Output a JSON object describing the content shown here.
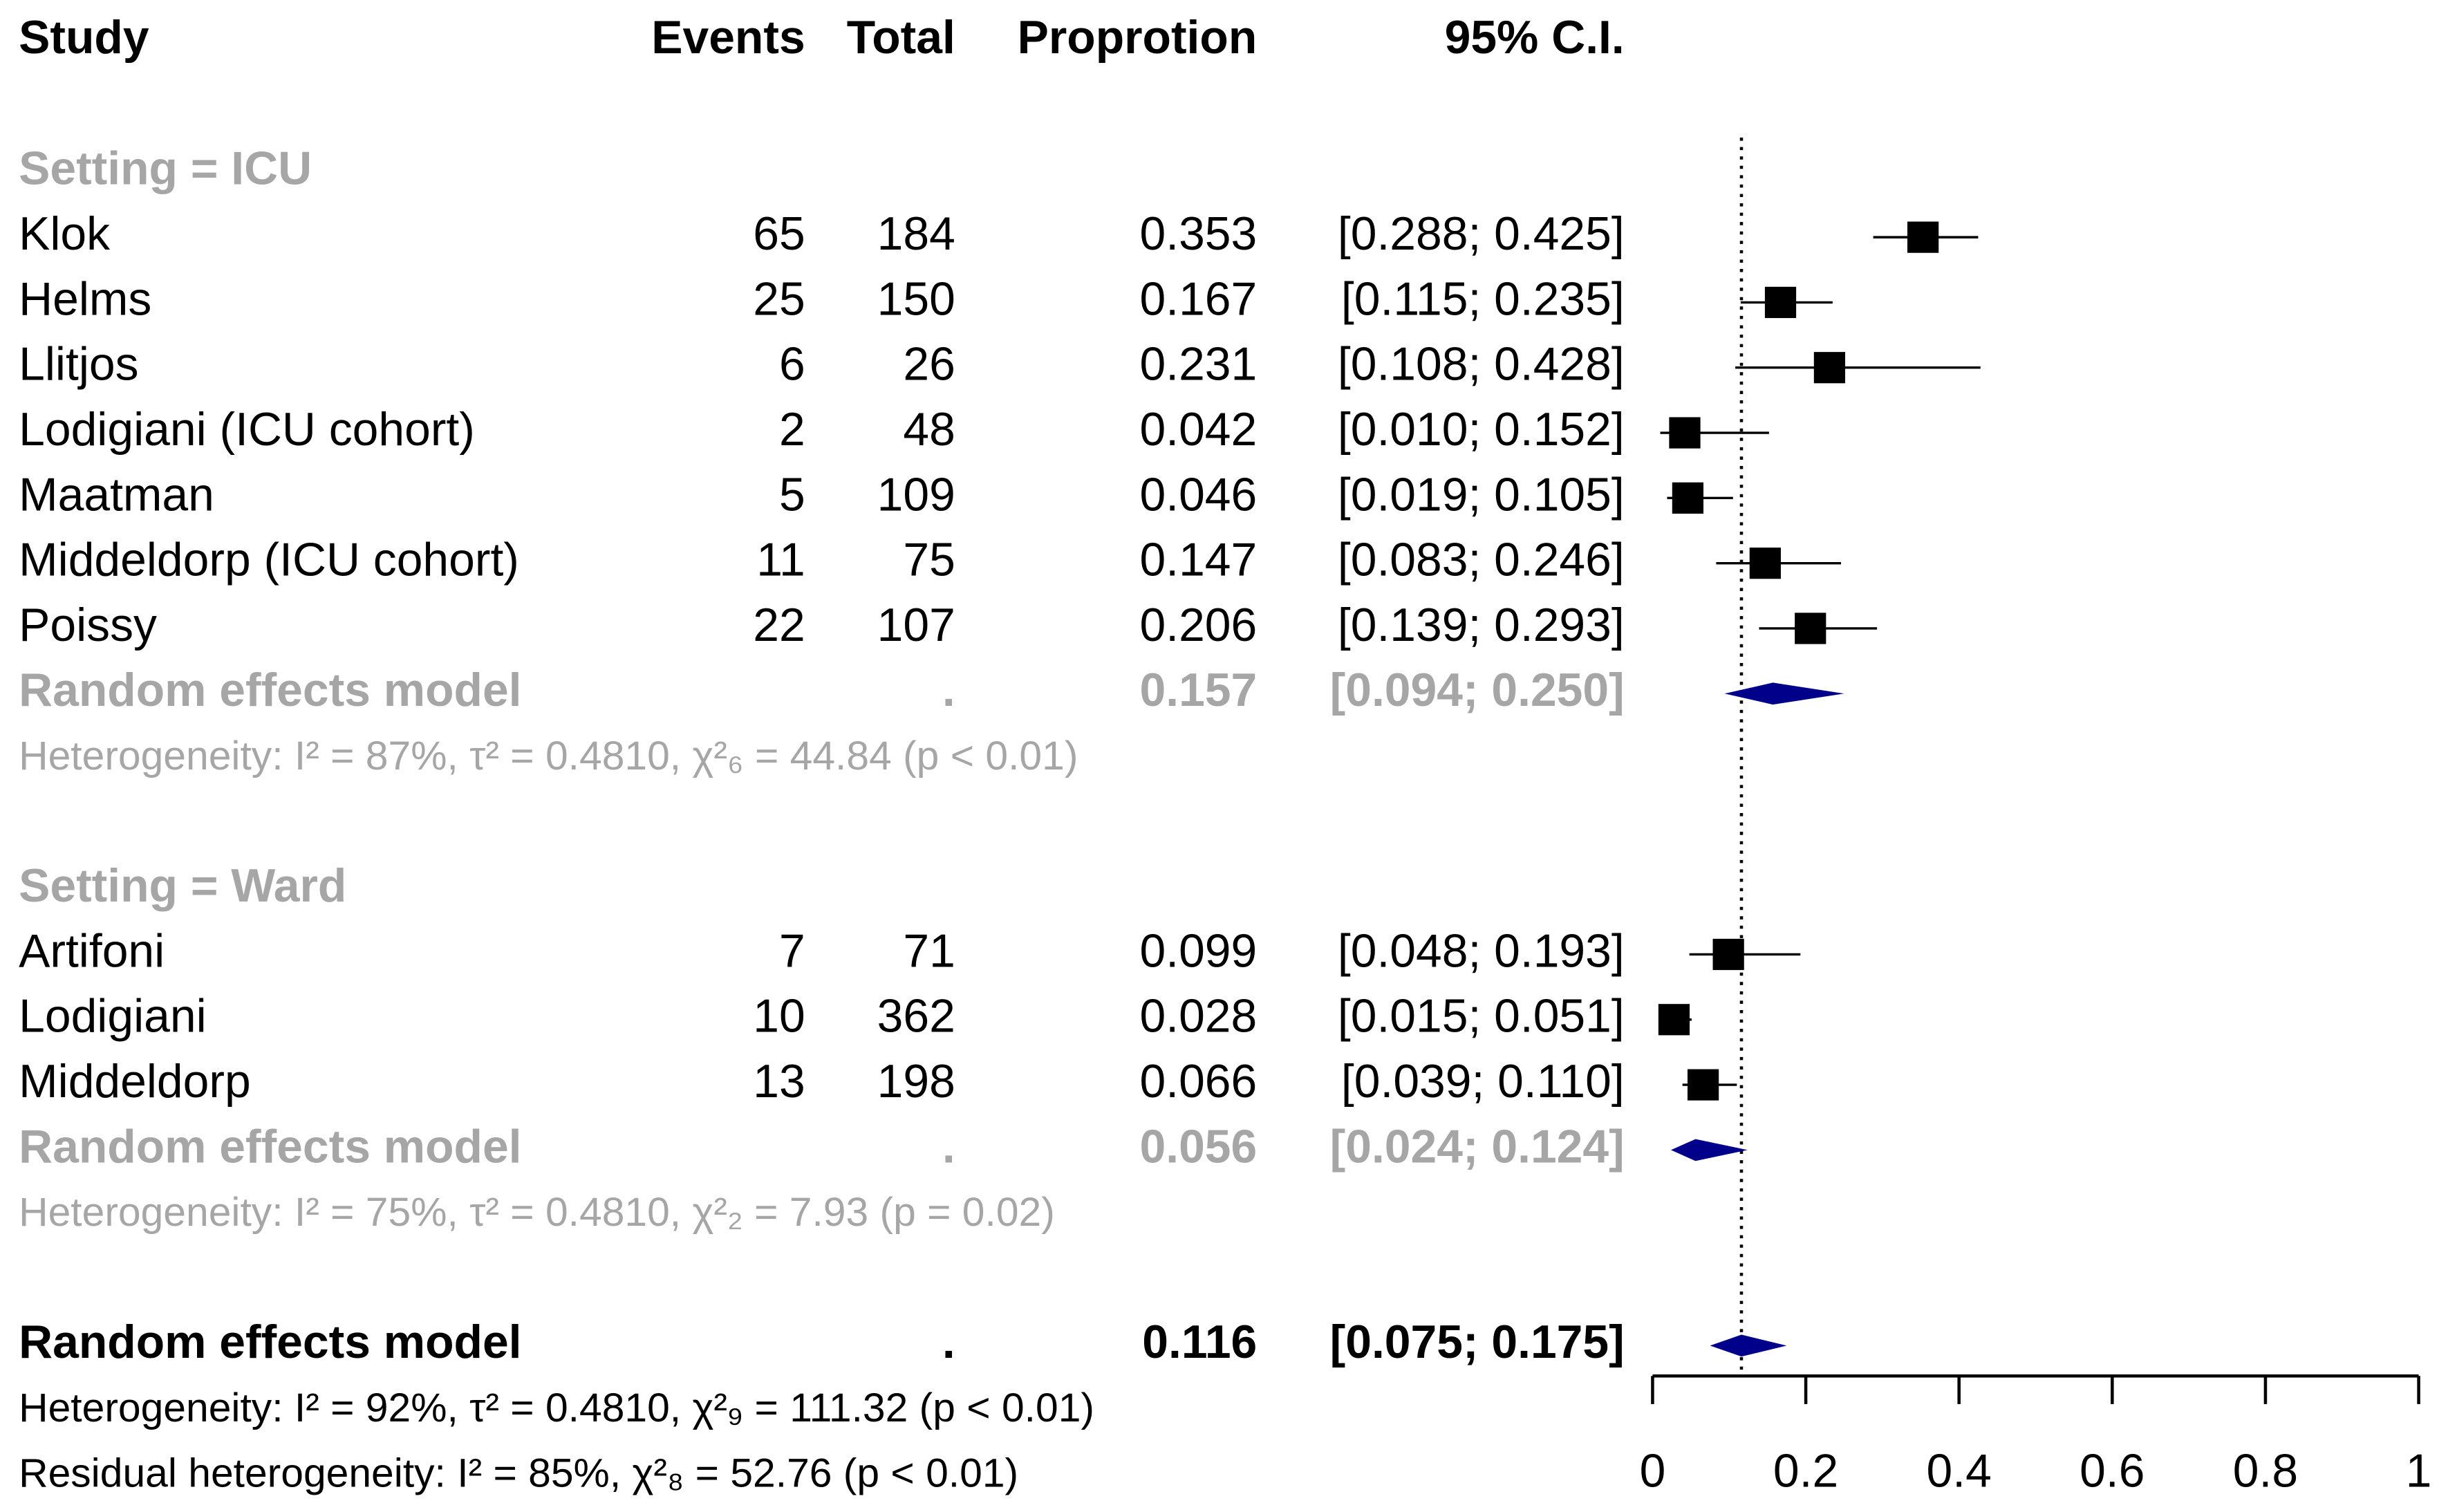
{
  "chart_data": {
    "type": "forest",
    "columns": [
      "Study",
      "Events",
      "Total",
      "Proprotion",
      "95% C.I."
    ],
    "groups": [
      {
        "label": "Setting = ICU",
        "studies": [
          {
            "study": "Klok",
            "events": 65,
            "total": 184,
            "proportion": 0.353,
            "lower": 0.288,
            "upper": 0.425,
            "ci_label": "[0.288; 0.425]"
          },
          {
            "study": "Helms",
            "events": 25,
            "total": 150,
            "proportion": 0.167,
            "lower": 0.115,
            "upper": 0.235,
            "ci_label": "[0.115; 0.235]"
          },
          {
            "study": "Llitjos",
            "events": 6,
            "total": 26,
            "proportion": 0.231,
            "lower": 0.108,
            "upper": 0.428,
            "ci_label": "[0.108; 0.428]"
          },
          {
            "study": "Lodigiani (ICU cohort)",
            "events": 2,
            "total": 48,
            "proportion": 0.042,
            "lower": 0.01,
            "upper": 0.152,
            "ci_label": "[0.010; 0.152]"
          },
          {
            "study": "Maatman",
            "events": 5,
            "total": 109,
            "proportion": 0.046,
            "lower": 0.019,
            "upper": 0.105,
            "ci_label": "[0.019; 0.105]"
          },
          {
            "study": "Middeldorp (ICU cohort)",
            "events": 11,
            "total": 75,
            "proportion": 0.147,
            "lower": 0.083,
            "upper": 0.246,
            "ci_label": "[0.083; 0.246]"
          },
          {
            "study": "Poissy",
            "events": 22,
            "total": 107,
            "proportion": 0.206,
            "lower": 0.139,
            "upper": 0.293,
            "ci_label": "[0.139; 0.293]"
          }
        ],
        "model": {
          "label": "Random effects model",
          "total": ".",
          "proportion": 0.157,
          "lower": 0.094,
          "upper": 0.25,
          "ci_label": "[0.094; 0.250]"
        },
        "heterogeneity": "Heterogeneity: I² = 87%, τ² = 0.4810, χ²₆ = 44.84 (p < 0.01)"
      },
      {
        "label": "Setting = Ward",
        "studies": [
          {
            "study": "Artifoni",
            "events": 7,
            "total": 71,
            "proportion": 0.099,
            "lower": 0.048,
            "upper": 0.193,
            "ci_label": "[0.048; 0.193]"
          },
          {
            "study": "Lodigiani",
            "events": 10,
            "total": 362,
            "proportion": 0.028,
            "lower": 0.015,
            "upper": 0.051,
            "ci_label": "[0.015; 0.051]"
          },
          {
            "study": "Middeldorp",
            "events": 13,
            "total": 198,
            "proportion": 0.066,
            "lower": 0.039,
            "upper": 0.11,
            "ci_label": "[0.039; 0.110]"
          }
        ],
        "model": {
          "label": "Random effects model",
          "total": ".",
          "proportion": 0.056,
          "lower": 0.024,
          "upper": 0.124,
          "ci_label": "[0.024; 0.124]"
        },
        "heterogeneity": "Heterogeneity: I² = 75%, τ² = 0.4810, χ²₂ = 7.93 (p = 0.02)"
      }
    ],
    "overall": {
      "label": "Random effects model",
      "total": ".",
      "proportion": 0.116,
      "lower": 0.075,
      "upper": 0.175,
      "ci_label": "[0.075; 0.175]",
      "heterogeneity": "Heterogeneity: I² = 92%, τ² = 0.4810, χ²₉ = 111.32 (p < 0.01)",
      "residual_heterogeneity": "Residual heterogeneity: I² = 85%, χ²₈ = 52.76 (p < 0.01)"
    },
    "diamond_color": "#00008b",
    "xlim": [
      0,
      1
    ],
    "xticks": [
      0,
      0.2,
      0.4,
      0.6,
      0.8,
      1
    ]
  }
}
